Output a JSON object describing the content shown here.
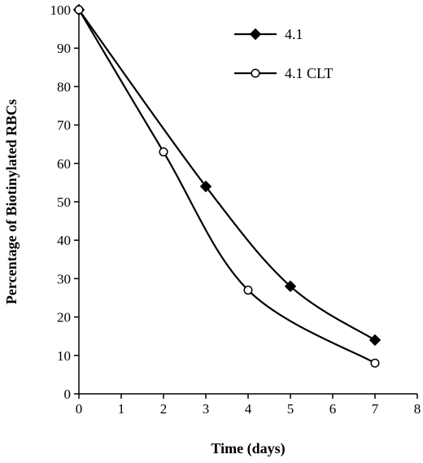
{
  "chart_data": {
    "type": "line",
    "title": "",
    "xlabel": "Time (days)",
    "ylabel": "Percentage of Biotinylated RBCs",
    "xlim": [
      0,
      8
    ],
    "ylim": [
      0,
      100
    ],
    "xticks": [
      0,
      1,
      2,
      3,
      4,
      5,
      6,
      7,
      8
    ],
    "yticks": [
      0,
      10,
      20,
      30,
      40,
      50,
      60,
      70,
      80,
      90,
      100
    ],
    "grid": false,
    "legend_position": "top-right",
    "series": [
      {
        "name": "4.1",
        "marker": "filled-diamond",
        "color": "#000000",
        "points": [
          [
            0,
            100
          ],
          [
            3,
            54
          ],
          [
            5,
            28
          ],
          [
            7,
            14
          ]
        ]
      },
      {
        "name": "4.1 CLT",
        "marker": "open-circle",
        "color": "#000000",
        "points": [
          [
            0,
            100
          ],
          [
            2,
            63
          ],
          [
            4,
            27
          ],
          [
            7,
            8
          ]
        ]
      }
    ]
  }
}
